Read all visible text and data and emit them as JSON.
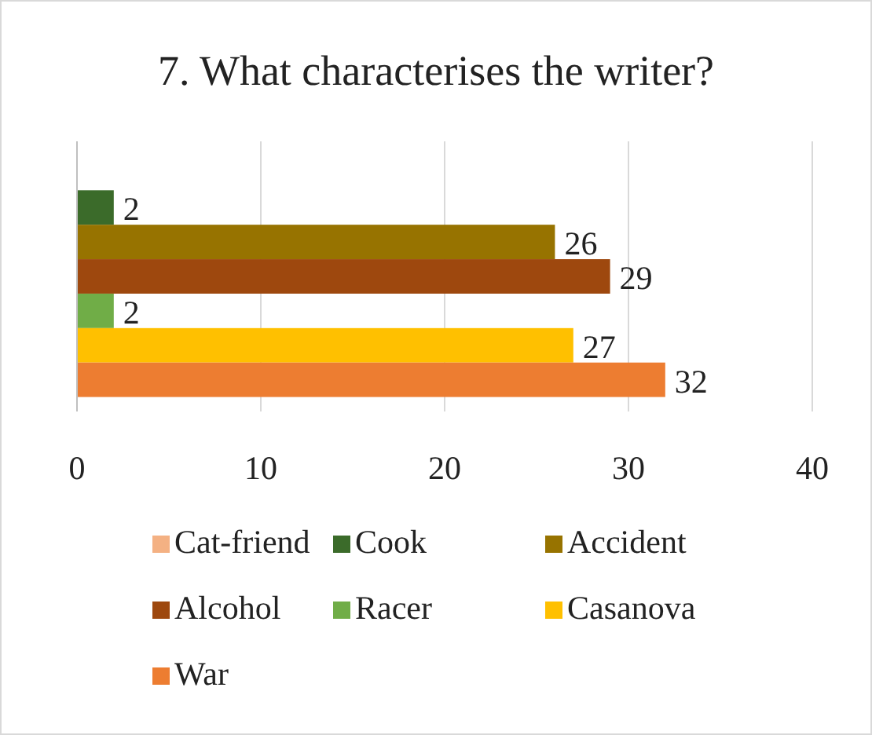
{
  "chart_data": {
    "type": "bar",
    "orientation": "horizontal",
    "title": "7. What characterises the writer?",
    "categories": [
      null
    ],
    "series": [
      {
        "name": "Cat-friend",
        "color": "#f4b183",
        "values": [
          null
        ]
      },
      {
        "name": "Cook",
        "color": "#3b6b2a",
        "values": [
          2
        ]
      },
      {
        "name": "Accident",
        "color": "#977300",
        "values": [
          26
        ]
      },
      {
        "name": "Alcohol",
        "color": "#9e480e",
        "values": [
          29
        ]
      },
      {
        "name": "Racer",
        "color": "#70ad47",
        "values": [
          2
        ]
      },
      {
        "name": "Casanova",
        "color": "#ffc000",
        "values": [
          27
        ]
      },
      {
        "name": "War",
        "color": "#ed7d31",
        "values": [
          32
        ]
      }
    ],
    "xlim": [
      0,
      40
    ],
    "xticks": [
      0,
      10,
      20,
      30,
      40
    ],
    "grid": "x",
    "legend": "bottom",
    "data_labels": true
  }
}
